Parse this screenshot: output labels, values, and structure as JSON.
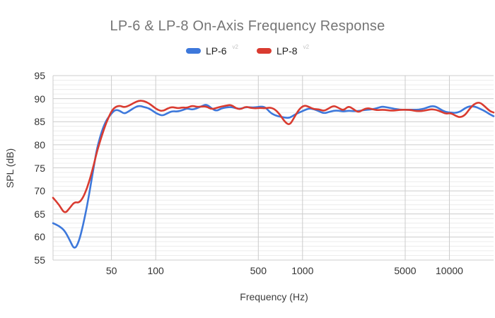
{
  "title": "LP-6 & LP-8 On-Axis Frequency Response",
  "legend": {
    "items": [
      {
        "label": "LP-6",
        "superscript": "v2",
        "color": "#3D78DB"
      },
      {
        "label": "LP-8",
        "superscript": "v2",
        "color": "#D93B30"
      }
    ]
  },
  "colors": {
    "major_grid": "#cccccc",
    "minor_grid": "#ececec",
    "title_text": "#757575",
    "tick_text": "#333333"
  },
  "chart_data": {
    "type": "line",
    "title": "LP-6 & LP-8 On-Axis Frequency Response",
    "xlabel": "Frequency (Hz)",
    "ylabel": "SPL (dB)",
    "x_scale": "log",
    "x_domain": [
      20,
      20000
    ],
    "y_domain": [
      55,
      95
    ],
    "x_ticks": [
      50,
      100,
      500,
      1000,
      5000,
      10000
    ],
    "y_ticks": [
      55,
      60,
      65,
      70,
      75,
      80,
      85,
      90,
      95
    ],
    "y_minor_step": 1,
    "grid": true,
    "legend_position": "top",
    "frequencies_hz": [
      20,
      22,
      24,
      26,
      28,
      30,
      32,
      34,
      36,
      38,
      40,
      43,
      46,
      50,
      53,
      57,
      61,
      66,
      71,
      77,
      83,
      90,
      97,
      104,
      112,
      121,
      130,
      141,
      152,
      164,
      177,
      191,
      206,
      222,
      240,
      259,
      280,
      302,
      326,
      352,
      380,
      410,
      443,
      478,
      516,
      557,
      601,
      649,
      700,
      756,
      816,
      881,
      951,
      1030,
      1110,
      1200,
      1290,
      1400,
      1510,
      1630,
      1760,
      1900,
      2050,
      2210,
      2390,
      2580,
      2780,
      3000,
      3240,
      3500,
      3780,
      4080,
      4400,
      4750,
      5130,
      5540,
      5980,
      6450,
      6960,
      7520,
      8110,
      8760,
      9450,
      10200,
      11000,
      11900,
      12850,
      13870,
      14970,
      16160,
      17450,
      18840,
      20000
    ],
    "series": [
      {
        "name": "LP-6",
        "superscript": "v2",
        "color": "#3D78DB",
        "spl_db": [
          63.0,
          62.4,
          61.4,
          59.3,
          57.2,
          59.0,
          62.5,
          66.5,
          71.0,
          75.5,
          79.5,
          83.0,
          85.3,
          86.8,
          87.6,
          87.4,
          86.7,
          87.3,
          88.0,
          88.5,
          88.2,
          87.9,
          87.2,
          86.6,
          86.3,
          86.9,
          87.3,
          87.2,
          87.5,
          87.9,
          87.6,
          87.9,
          88.4,
          88.8,
          87.9,
          87.3,
          87.9,
          88.1,
          88.2,
          87.9,
          87.8,
          88.2,
          88.1,
          88.1,
          88.3,
          88.2,
          87.0,
          86.4,
          86.1,
          85.9,
          85.8,
          86.5,
          87.0,
          87.5,
          87.9,
          87.7,
          87.3,
          86.8,
          87.1,
          87.4,
          87.4,
          87.2,
          87.4,
          87.3,
          87.3,
          87.5,
          87.6,
          87.7,
          88.0,
          88.3,
          88.1,
          87.9,
          87.7,
          87.6,
          87.6,
          87.6,
          87.6,
          87.7,
          88.0,
          88.4,
          88.3,
          87.6,
          87.1,
          87.0,
          86.9,
          87.2,
          88.0,
          88.4,
          88.3,
          87.8,
          87.3,
          86.6,
          86.2
        ]
      },
      {
        "name": "LP-8",
        "superscript": "v2",
        "color": "#D93B30",
        "spl_db": [
          68.5,
          67.0,
          65.0,
          66.3,
          67.6,
          67.4,
          68.5,
          70.5,
          73.0,
          75.8,
          78.8,
          82.0,
          84.8,
          87.3,
          88.2,
          88.5,
          88.1,
          88.5,
          89.1,
          89.6,
          89.5,
          89.0,
          88.2,
          87.5,
          87.3,
          87.9,
          88.2,
          87.9,
          88.1,
          88.0,
          88.5,
          88.2,
          88.3,
          88.3,
          87.7,
          88.0,
          88.3,
          88.5,
          88.7,
          87.9,
          87.7,
          88.3,
          88.0,
          87.9,
          88.0,
          87.9,
          88.1,
          87.7,
          86.6,
          85.0,
          84.2,
          86.0,
          87.8,
          88.6,
          88.2,
          87.7,
          87.7,
          87.3,
          87.9,
          88.5,
          88.0,
          87.4,
          88.4,
          87.8,
          87.0,
          87.6,
          88.0,
          87.7,
          87.5,
          87.6,
          87.5,
          87.4,
          87.5,
          87.6,
          87.6,
          87.5,
          87.3,
          87.3,
          87.5,
          87.7,
          87.6,
          87.2,
          86.7,
          86.9,
          86.3,
          85.9,
          86.5,
          88.0,
          89.0,
          89.2,
          88.3,
          87.3,
          87.0
        ]
      }
    ]
  }
}
